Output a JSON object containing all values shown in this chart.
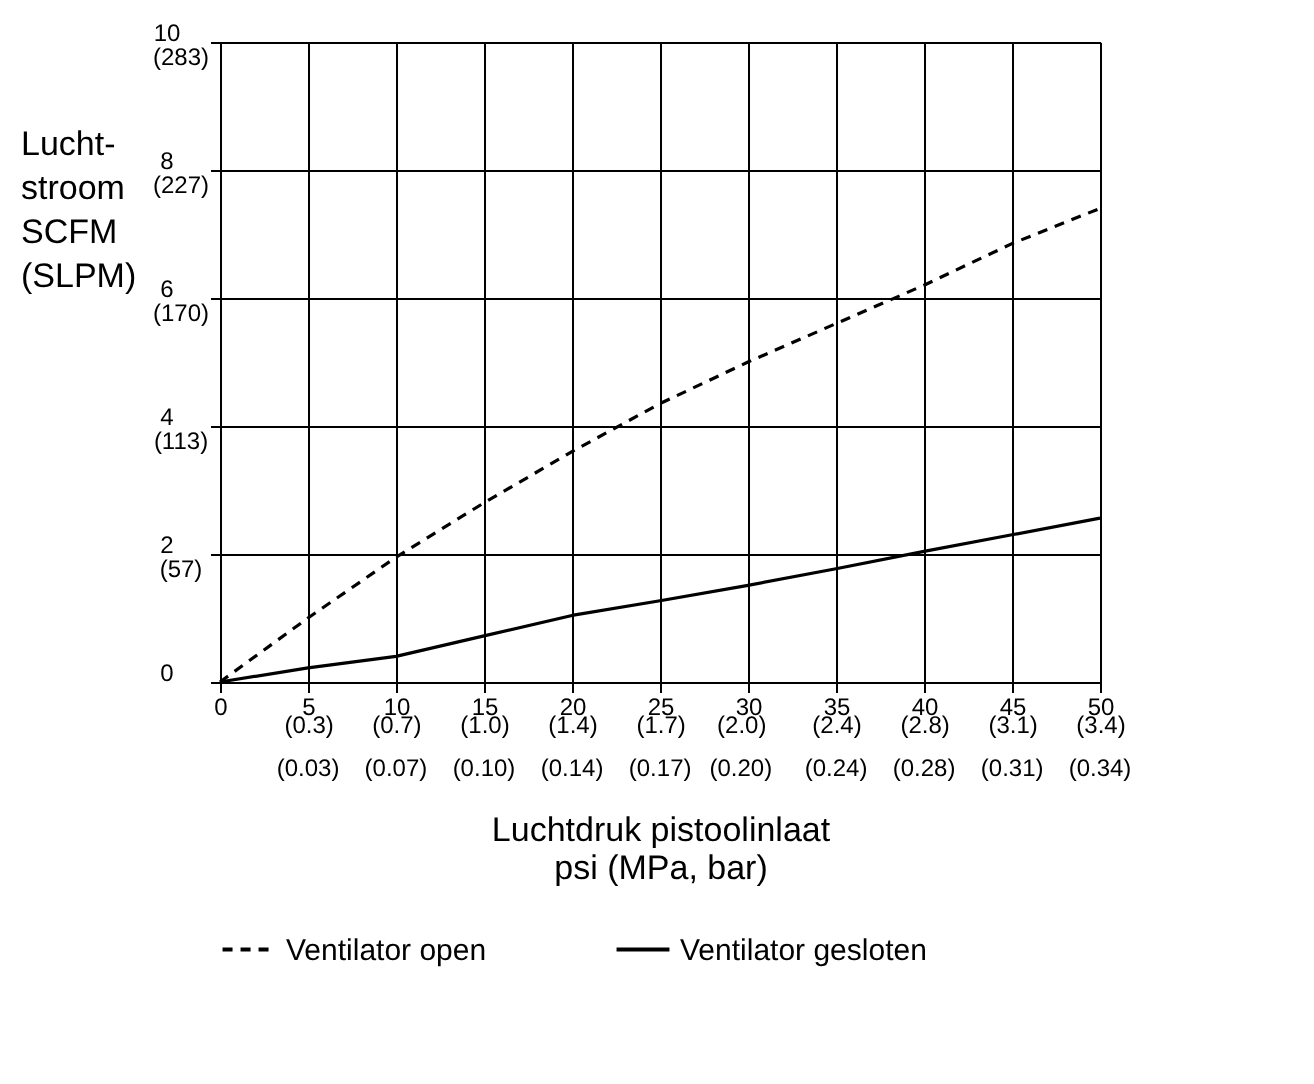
{
  "chart_data": {
    "type": "line",
    "xlabel": "Luchtdruk pistoolinlaat\npsi (MPa, bar)",
    "ylabel": "Lucht-\nstroom\nSCFM\n(SLPM)",
    "xlim": [
      0,
      50
    ],
    "ylim": [
      0,
      10
    ],
    "xticks": [
      0,
      5,
      10,
      15,
      20,
      25,
      30,
      35,
      40,
      45,
      50
    ],
    "x2lim": [
      0,
      3.447
    ],
    "x2ticks": [
      {
        "value": 0.345,
        "label": "(0.3)"
      },
      {
        "value": 0.689,
        "label": "(0.7)"
      },
      {
        "value": 1.034,
        "label": "(1.0)"
      },
      {
        "value": 1.379,
        "label": "(1.4)"
      },
      {
        "value": 1.724,
        "label": "(1.7)"
      },
      {
        "value": 2.04,
        "label": "(2.0)"
      },
      {
        "value": 2.413,
        "label": "(2.4)"
      },
      {
        "value": 2.758,
        "label": "(2.8)"
      },
      {
        "value": 3.103,
        "label": "(3.1)"
      },
      {
        "value": 3.447,
        "label": "(3.4)"
      }
    ],
    "yticks": [
      0,
      2,
      4,
      6,
      8,
      10
    ],
    "y2lim": [
      0,
      283.17
    ],
    "y2ticks": [
      {
        "value": 56.63,
        "label": "(57)"
      },
      {
        "value": 113.27,
        "label": "(113)"
      },
      {
        "value": 169.9,
        "label": "(170)"
      },
      {
        "value": 226.53,
        "label": "(227)"
      },
      {
        "value": 283.17,
        "label": "(283)"
      }
    ],
    "annotations": [
      "(0.03)",
      "(0.07)",
      "(0.10)",
      "(0.14)",
      "(0.17)",
      "(0.20)",
      "(0.24)",
      "(0.28)",
      "(0.31)",
      "(0.34)"
    ],
    "x": [
      0,
      5,
      10,
      15,
      20,
      25,
      30,
      35,
      40,
      45,
      50
    ],
    "grid": true,
    "legend": "bottom",
    "marker": "none",
    "series": [
      {
        "name": "Ventilator open",
        "color": "#000000",
        "line_style": "dashed",
        "values": [
          0,
          1.0,
          1.95,
          2.8,
          3.6,
          4.35,
          5.0,
          5.6,
          6.2,
          6.85,
          7.4
        ]
      },
      {
        "name": "Ventilator gesloten",
        "color": "#000000",
        "line_style": "solid",
        "values": [
          0,
          0.22,
          0.4,
          0.72,
          1.04,
          1.27,
          1.51,
          1.77,
          2.04,
          2.3,
          2.56
        ]
      }
    ]
  }
}
